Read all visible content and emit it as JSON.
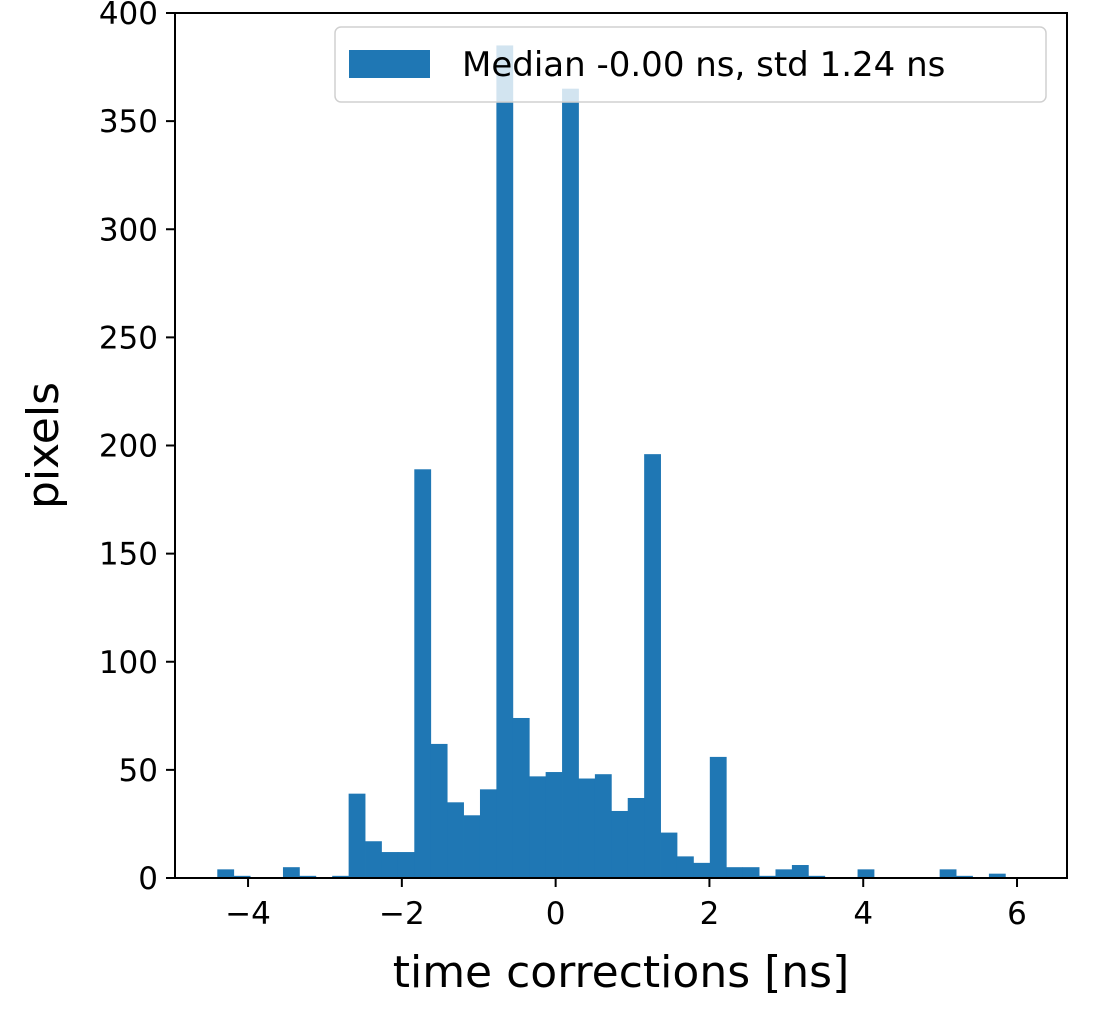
{
  "chart_data": {
    "type": "bar",
    "title": "",
    "xlabel": "time corrections [ns]",
    "ylabel": "pixels",
    "xlim": [
      -4.95,
      6.65
    ],
    "ylim": [
      0,
      400
    ],
    "xticks": [
      -4,
      -2,
      0,
      2,
      4,
      6
    ],
    "xtick_labels": [
      "−4",
      "−2",
      "0",
      "2",
      "4",
      "6"
    ],
    "yticks": [
      0,
      50,
      100,
      150,
      200,
      250,
      300,
      350,
      400
    ],
    "ytick_labels": [
      "0",
      "50",
      "100",
      "150",
      "200",
      "250",
      "300",
      "350",
      "400"
    ],
    "grid": false,
    "legend": {
      "position": "top-right",
      "entries": [
        "Median -0.00 ns, std 1.24 ns"
      ]
    },
    "series": [
      {
        "name": "Median -0.00 ns, std 1.24 ns",
        "color": "#1f77b4",
        "bin_start": -4.4,
        "bin_width": 0.2135,
        "values": [
          4,
          1,
          0,
          0,
          5,
          1,
          0,
          1,
          39,
          17,
          12,
          12,
          189,
          62,
          35,
          29,
          41,
          385,
          74,
          47,
          49,
          365,
          46,
          48,
          31,
          37,
          196,
          21,
          10,
          7,
          56,
          5,
          5,
          1,
          4,
          6,
          1,
          0,
          0,
          4,
          0,
          0,
          0,
          0,
          4,
          1,
          0,
          2
        ]
      }
    ]
  }
}
